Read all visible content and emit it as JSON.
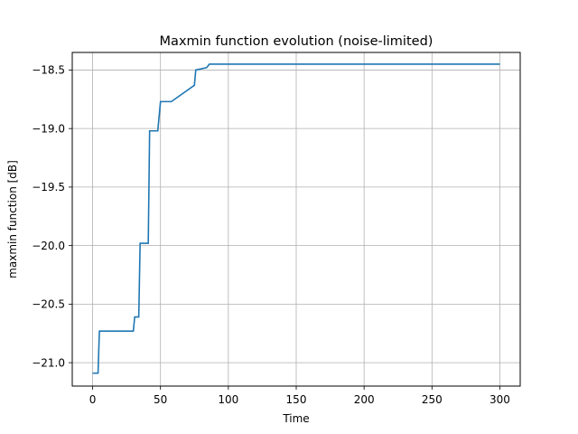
{
  "chart_data": {
    "type": "line",
    "title": "Maxmin function evolution (noise-limited)",
    "xlabel": "Time",
    "ylabel": "maxmin function [dB]",
    "xlim": [
      -15,
      315
    ],
    "ylim": [
      -21.2,
      -18.35
    ],
    "xticks": [
      0,
      50,
      100,
      150,
      200,
      250,
      300
    ],
    "xtick_labels": [
      "0",
      "50",
      "100",
      "150",
      "200",
      "250",
      "300"
    ],
    "yticks": [
      -21.0,
      -20.5,
      -20.0,
      -19.5,
      -19.0,
      -18.5
    ],
    "ytick_labels": [
      "−21.0",
      "−20.5",
      "−20.0",
      "−19.5",
      "−19.0",
      "−18.5"
    ],
    "grid": true,
    "legend": "none",
    "series": [
      {
        "color": "#1f77b4",
        "x": [
          0,
          4,
          4,
          5,
          5,
          30,
          30,
          31,
          31,
          34,
          34,
          35,
          35,
          41,
          41,
          42,
          42,
          48,
          48,
          50,
          50,
          58,
          58,
          75,
          75,
          76,
          76,
          84,
          84,
          86,
          86,
          300
        ],
        "y": [
          -21.09,
          -21.09,
          -21.09,
          -20.73,
          -20.73,
          -20.73,
          -20.73,
          -20.61,
          -20.61,
          -20.61,
          -20.61,
          -19.98,
          -19.98,
          -19.98,
          -19.98,
          -19.02,
          -19.02,
          -19.02,
          -19.02,
          -18.77,
          -18.77,
          -18.77,
          -18.77,
          -18.63,
          -18.63,
          -18.5,
          -18.5,
          -18.48,
          -18.48,
          -18.45,
          -18.45,
          -18.45
        ]
      }
    ]
  }
}
